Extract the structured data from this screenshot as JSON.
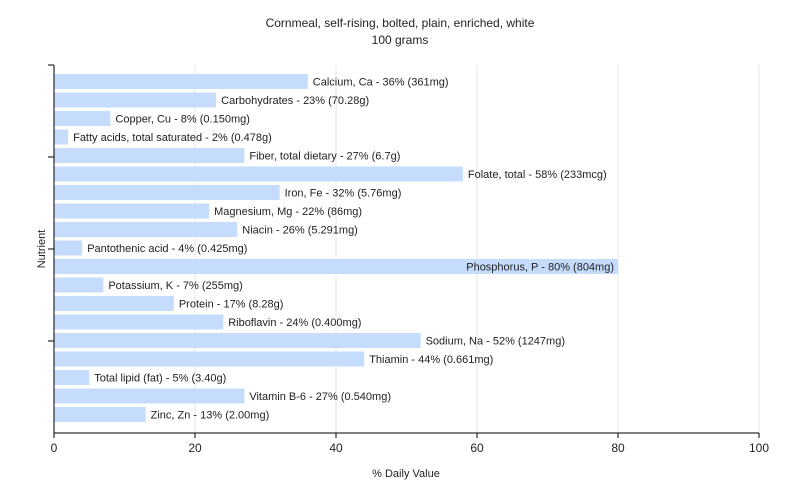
{
  "chart_data": {
    "type": "bar",
    "orientation": "horizontal",
    "title": "Cornmeal, self-rising, bolted, plain, enriched, white",
    "subtitle": "100 grams",
    "xlabel": "% Daily Value",
    "ylabel": "Nutrient",
    "xlim": [
      0,
      100
    ],
    "xticks": [
      0,
      20,
      40,
      60,
      80,
      100
    ],
    "grid": true,
    "bar_color": "#c6dcfc",
    "categories": [
      "Calcium, Ca - 36% (361mg)",
      "Carbohydrates - 23% (70.28g)",
      "Copper, Cu - 8% (0.150mg)",
      "Fatty acids, total saturated - 2% (0.478g)",
      "Fiber, total dietary - 27% (6.7g)",
      "Folate, total - 58% (233mcg)",
      "Iron, Fe - 32% (5.76mg)",
      "Magnesium, Mg - 22% (86mg)",
      "Niacin - 26% (5.291mg)",
      "Pantothenic acid - 4% (0.425mg)",
      "Phosphorus, P - 80% (804mg)",
      "Potassium, K - 7% (255mg)",
      "Protein - 17% (8.28g)",
      "Riboflavin - 24% (0.400mg)",
      "Sodium, Na - 52% (1247mg)",
      "Thiamin - 44% (0.661mg)",
      "Total lipid (fat) - 5% (3.40g)",
      "Vitamin B-6 - 27% (0.540mg)",
      "Zinc, Zn - 13% (2.00mg)"
    ],
    "values": [
      36,
      23,
      8,
      2,
      27,
      58,
      32,
      22,
      26,
      4,
      80,
      7,
      17,
      24,
      52,
      44,
      5,
      27,
      13
    ]
  }
}
